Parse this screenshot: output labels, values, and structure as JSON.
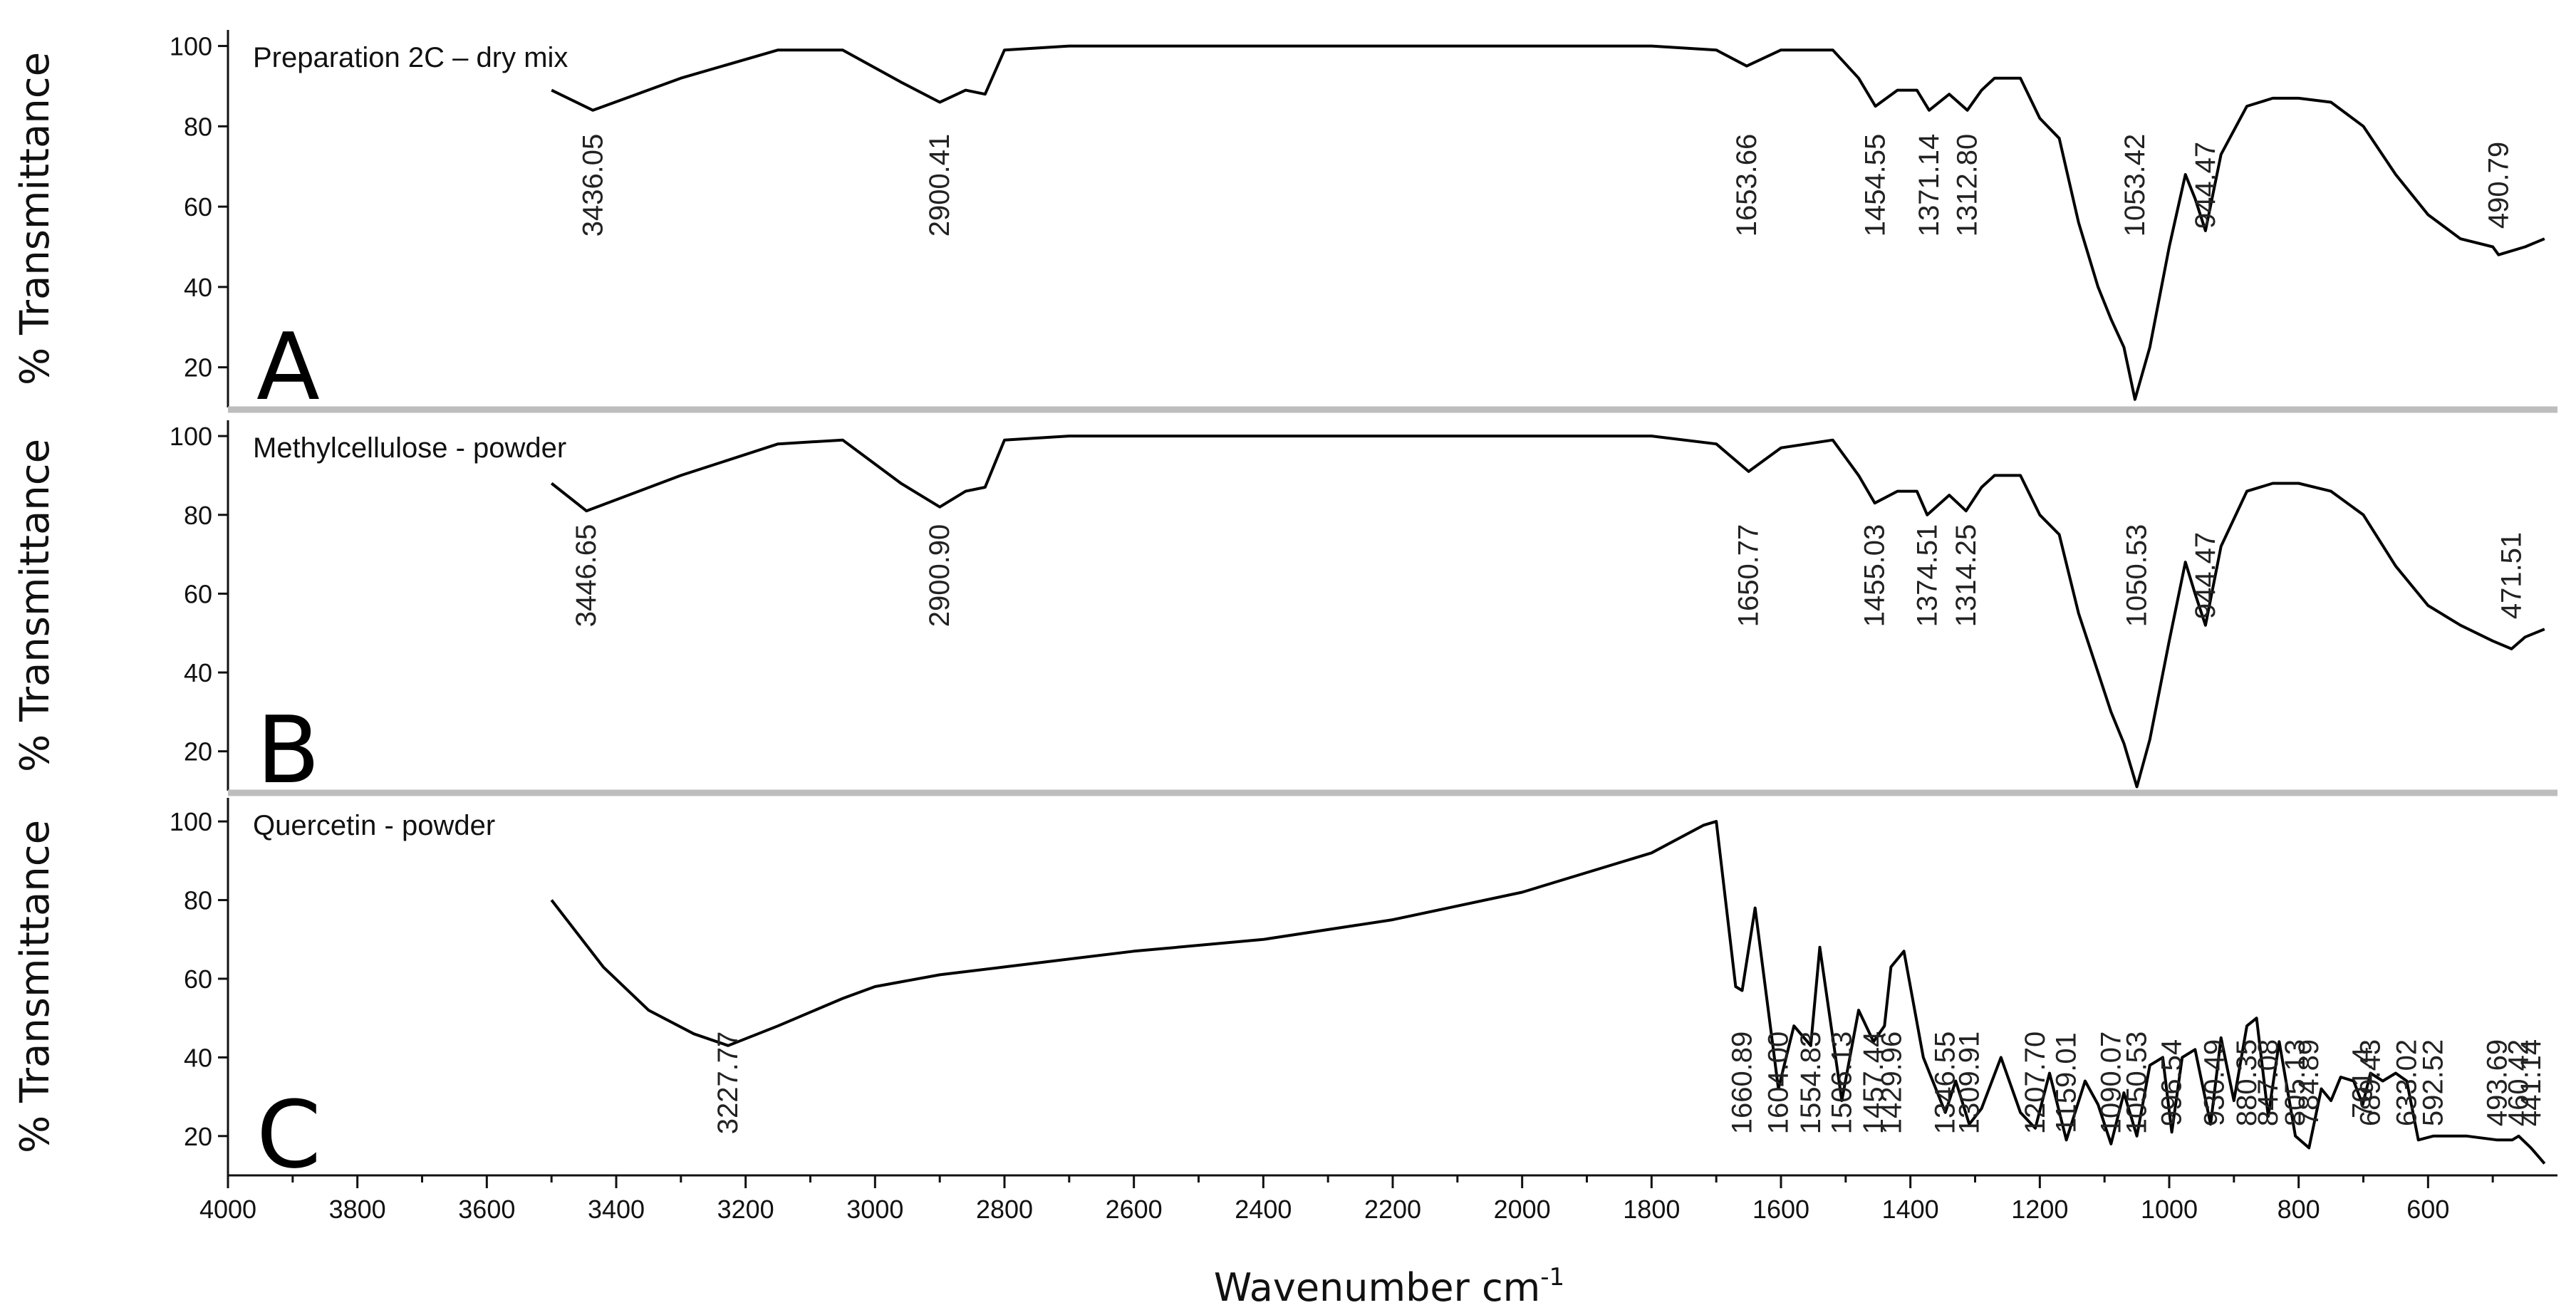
{
  "chart_data": {
    "type": "line",
    "xlabel": "Wavenumber cm",
    "xlabel_superscript": "-1",
    "xlim": [
      4000,
      400
    ],
    "x_ticks": [
      4000,
      3800,
      3600,
      3400,
      3200,
      3000,
      2800,
      2600,
      2400,
      2200,
      2000,
      1800,
      1600,
      1400,
      1200,
      1000,
      800,
      600
    ],
    "panels": [
      {
        "letter": "A",
        "title": "Preparation 2C – dry mix",
        "ylabel": "% Transmittance",
        "ylim": [
          10,
          104
        ],
        "y_ticks": [
          20,
          40,
          60,
          80,
          100
        ],
        "series": [
          {
            "name": "Preparation 2C – dry mix",
            "x": [
              3500,
              3436,
              3300,
              3150,
              3050,
              2960,
              2900,
              2860,
              2830,
              2800,
              2700,
              2500,
              2200,
              2000,
              1800,
              1700,
              1653,
              1600,
              1520,
              1480,
              1454,
              1420,
              1390,
              1371,
              1340,
              1312,
              1290,
              1270,
              1230,
              1200,
              1170,
              1140,
              1110,
              1090,
              1070,
              1053,
              1030,
              1000,
              975,
              960,
              944,
              920,
              880,
              840,
              800,
              750,
              700,
              650,
              600,
              550,
              500,
              491,
              450,
              420
            ],
            "y": [
              89,
              84,
              92,
              99,
              99,
              91,
              86,
              89,
              88,
              99,
              100,
              100,
              100,
              100,
              100,
              99,
              95,
              99,
              99,
              92,
              85,
              89,
              89,
              84,
              88,
              84,
              89,
              92,
              92,
              82,
              77,
              56,
              40,
              32,
              25,
              12,
              25,
              50,
              68,
              62,
              54,
              73,
              85,
              87,
              87,
              86,
              80,
              68,
              58,
              52,
              50,
              48,
              50,
              52
            ]
          }
        ],
        "peaks": [
          "3436.05",
          "2900.41",
          "1653.66",
          "1454.55",
          "1371.14",
          "1312.80",
          "1053.42",
          "944.47",
          "490.79"
        ],
        "peak_x": [
          3436,
          2900,
          1653,
          1454,
          1371,
          1312,
          1053,
          944,
          491
        ]
      },
      {
        "letter": "B",
        "title": "Methylcellulose  - powder",
        "ylabel": "% Transmittance",
        "ylim": [
          10,
          104
        ],
        "y_ticks": [
          20,
          40,
          60,
          80,
          100
        ],
        "series": [
          {
            "name": "Methylcellulose - powder",
            "x": [
              3500,
              3446,
              3300,
              3150,
              3050,
              2960,
              2900,
              2860,
              2830,
              2800,
              2700,
              2500,
              2200,
              2000,
              1800,
              1700,
              1650,
              1600,
              1520,
              1480,
              1455,
              1420,
              1390,
              1374,
              1340,
              1314,
              1290,
              1270,
              1230,
              1200,
              1170,
              1140,
              1110,
              1090,
              1070,
              1050,
              1030,
              1000,
              975,
              960,
              944,
              920,
              880,
              840,
              800,
              750,
              700,
              650,
              600,
              550,
              500,
              471,
              450,
              420
            ],
            "y": [
              88,
              81,
              90,
              98,
              99,
              88,
              82,
              86,
              87,
              99,
              100,
              100,
              100,
              100,
              100,
              98,
              91,
              97,
              99,
              90,
              83,
              86,
              86,
              80,
              85,
              81,
              87,
              90,
              90,
              80,
              75,
              55,
              40,
              30,
              22,
              11,
              23,
              48,
              68,
              60,
              52,
              72,
              86,
              88,
              88,
              86,
              80,
              67,
              57,
              52,
              48,
              46,
              49,
              51
            ]
          }
        ],
        "peaks": [
          "3446.65",
          "2900.90",
          "1650.77",
          "1455.03",
          "1374.51",
          "1314.25",
          "1050.53",
          "944.47",
          "471.51"
        ],
        "peak_x": [
          3446,
          2900,
          1650,
          1455,
          1374,
          1314,
          1050,
          944,
          471
        ]
      },
      {
        "letter": "C",
        "title": "Quercetin  - powder",
        "ylabel": "% Transmittance",
        "ylim": [
          10,
          106
        ],
        "y_ticks": [
          20,
          40,
          60,
          80,
          100
        ],
        "series": [
          {
            "name": "Quercetin - powder",
            "x": [
              3500,
              3420,
              3350,
              3280,
              3227,
              3150,
              3050,
              3000,
              2900,
              2800,
              2600,
              2400,
              2200,
              2000,
              1800,
              1720,
              1700,
              1670,
              1660,
              1640,
              1604,
              1580,
              1554,
              1540,
              1506,
              1480,
              1457,
              1440,
              1430,
              1410,
              1380,
              1346,
              1330,
              1309,
              1290,
              1260,
              1230,
              1207,
              1185,
              1159,
              1130,
              1110,
              1090,
              1070,
              1050,
              1030,
              1010,
              996,
              980,
              960,
              936,
              920,
              900,
              880,
              865,
              847,
              830,
              805,
              784,
              765,
              750,
              735,
              715,
              701,
              689,
              670,
              650,
              633,
              615,
              592,
              570,
              540,
              493,
              470,
              460,
              441,
              420
            ],
            "y": [
              80,
              63,
              52,
              46,
              43,
              48,
              55,
              58,
              61,
              63,
              67,
              70,
              75,
              82,
              92,
              99,
              100,
              58,
              57,
              78,
              32,
              48,
              43,
              68,
              29,
              52,
              44,
              48,
              63,
              67,
              40,
              26,
              34,
              23,
              27,
              40,
              26,
              22,
              36,
              19,
              34,
              28,
              18,
              31,
              20,
              38,
              40,
              21,
              40,
              42,
              23,
              45,
              29,
              48,
              50,
              25,
              44,
              20,
              17,
              32,
              29,
              35,
              34,
              28,
              36,
              34,
              36,
              34,
              19,
              20,
              20,
              20,
              19,
              19,
              20,
              17,
              13
            ]
          }
        ],
        "peaks": [
          "3227.77",
          "1660.89",
          "1604.00",
          "1554.83",
          "1506.13",
          "1457.44",
          "1429.96",
          "1346.55",
          "1309.91",
          "1207.70",
          "1159.01",
          "1090.07",
          "1050.53",
          "996.54",
          "930.49",
          "880.35",
          "847.08",
          "784.89",
          "805.13",
          "701.4",
          "689.43",
          "633.02",
          "592.52",
          "493.69",
          "460.42",
          "441.14"
        ],
        "peak_x": [
          3227,
          1660,
          1604,
          1554,
          1506,
          1457,
          1429,
          1346,
          1309,
          1207,
          1159,
          1090,
          1050,
          996,
          930,
          880,
          847,
          784,
          805,
          701,
          689,
          633,
          592,
          493,
          460,
          441
        ]
      }
    ]
  }
}
